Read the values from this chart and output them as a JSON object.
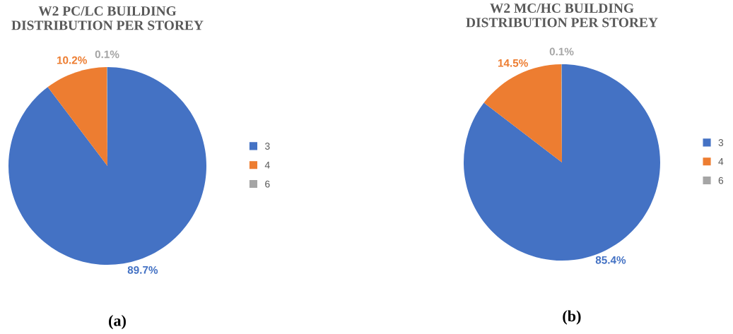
{
  "chart_data": [
    {
      "type": "pie",
      "title": "W2 PC/LC BUILDING\nDISTRIBUTION PER STOREY",
      "categories": [
        "3",
        "4",
        "6"
      ],
      "values": [
        89.7,
        10.2,
        0.1
      ],
      "colors": [
        "#4472c4",
        "#ed7d31",
        "#a5a5a5"
      ],
      "value_labels": [
        "89.7%",
        "10.2%",
        "0.1%"
      ],
      "legend": "right",
      "annotations": [
        "(a)"
      ]
    },
    {
      "type": "pie",
      "title": "W2 MC/HC BUILDING\nDISTRIBUTION PER STOREY",
      "categories": [
        "3",
        "4",
        "6"
      ],
      "values": [
        85.4,
        14.5,
        0.1
      ],
      "colors": [
        "#4472c4",
        "#ed7d31",
        "#a5a5a5"
      ],
      "value_labels": [
        "85.4%",
        "14.5%",
        "0.1%"
      ],
      "legend": "right",
      "annotations": [
        "(b)"
      ]
    }
  ]
}
